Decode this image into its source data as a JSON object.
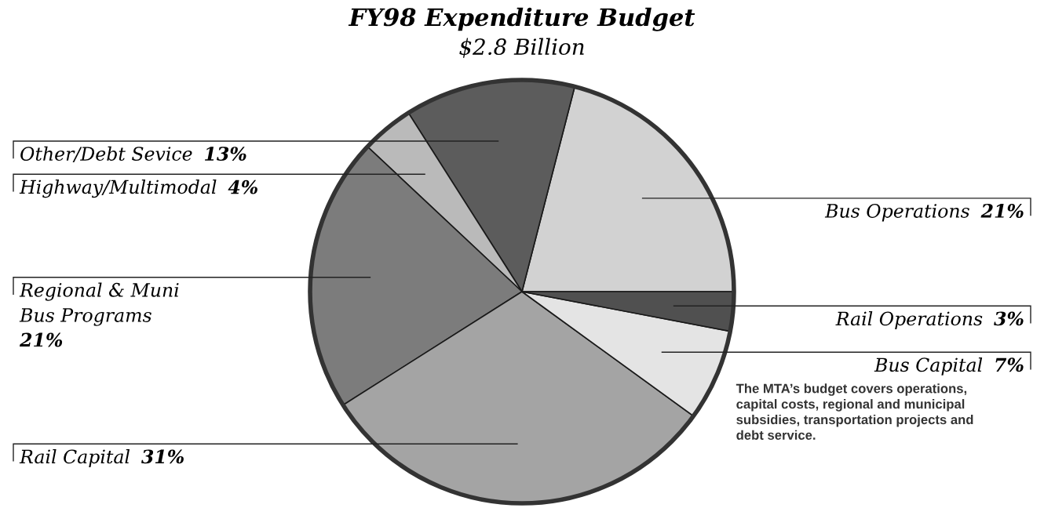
{
  "chart_data": {
    "type": "pie",
    "title": "FY98 Expenditure Budget",
    "subtitle": "$2.8 Billion",
    "categories": [
      "Bus Operations",
      "Other/Debt Sevice",
      "Highway/Multimodal",
      "Regional & Muni\nBus Programs",
      "Rail Capital",
      "Bus Capital",
      "Rail Operations"
    ],
    "values": [
      21,
      13,
      4,
      21,
      31,
      7,
      3
    ],
    "value_labels": [
      "21%",
      "13%",
      "4%",
      "21%",
      "31%",
      "7%",
      "3%"
    ],
    "colors": [
      "#d2d2d2",
      "#5c5c5c",
      "#bababa",
      "#7c7c7c",
      "#a4a4a4",
      "#e4e4e4",
      "#505050"
    ],
    "annotations": [
      "The MTA’s budget covers operations,\ncapital costs, regional and municipal\nsubsidies, transportation projects and\ndebt service."
    ]
  }
}
